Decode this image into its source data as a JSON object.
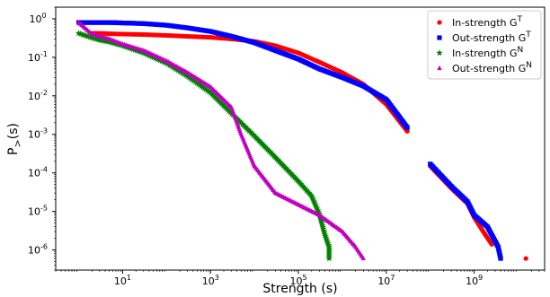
{
  "chart_data": {
    "type": "scatter",
    "xlabel": "Strength (s)",
    "ylabel": "P_>(s)",
    "x_scale": "log",
    "y_scale": "log",
    "xlim": [
      0.3,
      40000000000
    ],
    "ylim": [
      3e-07,
      2
    ],
    "x_ticks": [
      {
        "value": 10,
        "base": "10",
        "exp": "1"
      },
      {
        "value": 1000,
        "base": "10",
        "exp": "3"
      },
      {
        "value": 100000,
        "base": "10",
        "exp": "5"
      },
      {
        "value": 10000000,
        "base": "10",
        "exp": "7"
      },
      {
        "value": 1000000000,
        "base": "10",
        "exp": "9"
      }
    ],
    "y_ticks": [
      {
        "value": 1,
        "base": "10",
        "exp": "0"
      },
      {
        "value": 0.1,
        "base": "10",
        "exp": "-1"
      },
      {
        "value": 0.01,
        "base": "10",
        "exp": "-2"
      },
      {
        "value": 0.001,
        "base": "10",
        "exp": "-3"
      },
      {
        "value": 0.0001,
        "base": "10",
        "exp": "-4"
      },
      {
        "value": 1e-05,
        "base": "10",
        "exp": "-5"
      },
      {
        "value": 1e-06,
        "base": "10",
        "exp": "-6"
      }
    ],
    "legend_position": "top-right",
    "grid": false,
    "series": [
      {
        "name": "In-strength G",
        "name_sup": "T",
        "color": "#ff0000",
        "marker": "circle",
        "points": [
          [
            2,
            0.42
          ],
          [
            3,
            0.42
          ],
          [
            5,
            0.41
          ],
          [
            10,
            0.4
          ],
          [
            30,
            0.39
          ],
          [
            100,
            0.37
          ],
          [
            300,
            0.35
          ],
          [
            1000,
            0.33
          ],
          [
            3000,
            0.3
          ],
          [
            10000,
            0.26
          ],
          [
            30000,
            0.2
          ],
          [
            100000,
            0.13
          ],
          [
            300000,
            0.075
          ],
          [
            1000000,
            0.04
          ],
          [
            3000000,
            0.02
          ],
          [
            10000000,
            0.006
          ],
          [
            30000000,
            0.0012
          ],
          [
            100000000,
            0.00015
          ],
          [
            300000000,
            4e-05
          ],
          [
            700000000,
            1.6e-05
          ],
          [
            1000000000,
            7e-06
          ],
          [
            1600000000,
            3e-06
          ],
          [
            2500000000,
            1.4e-06
          ],
          [
            15000000000,
            6e-07
          ]
        ]
      },
      {
        "name": "Out-strength G",
        "name_sup": "T",
        "color": "#0000ff",
        "marker": "square",
        "points": [
          [
            1,
            0.8
          ],
          [
            2,
            0.8
          ],
          [
            5,
            0.8
          ],
          [
            10,
            0.78
          ],
          [
            30,
            0.75
          ],
          [
            100,
            0.68
          ],
          [
            300,
            0.58
          ],
          [
            1000,
            0.47
          ],
          [
            3000,
            0.35
          ],
          [
            10000,
            0.24
          ],
          [
            30000,
            0.15
          ],
          [
            100000,
            0.09
          ],
          [
            300000,
            0.05
          ],
          [
            1000000,
            0.03
          ],
          [
            3000000,
            0.018
          ],
          [
            10000000,
            0.008
          ],
          [
            30000000,
            0.0015
          ],
          [
            100000000,
            0.00017
          ],
          [
            300000000,
            4.5e-05
          ],
          [
            700000000,
            1.8e-05
          ],
          [
            1000000000,
            8e-06
          ],
          [
            2000000000,
            4e-06
          ],
          [
            3500000000,
            1.2e-06
          ],
          [
            4000000000,
            6e-07
          ]
        ]
      },
      {
        "name": "In-strength G",
        "name_sup": "N",
        "color": "#008000",
        "marker": "star",
        "points": [
          [
            1,
            0.42
          ],
          [
            2,
            0.32
          ],
          [
            3,
            0.28
          ],
          [
            5,
            0.25
          ],
          [
            10,
            0.2
          ],
          [
            30,
            0.13
          ],
          [
            100,
            0.07
          ],
          [
            300,
            0.032
          ],
          [
            1000,
            0.012
          ],
          [
            3000,
            0.0035
          ],
          [
            10000,
            0.0009
          ],
          [
            30000,
            0.00025
          ],
          [
            100000,
            6e-05
          ],
          [
            200000,
            2.5e-05
          ],
          [
            300000,
            8.5e-06
          ],
          [
            400000,
            2.5e-06
          ],
          [
            500000,
            1.2e-06
          ],
          [
            500000,
            6e-07
          ]
        ]
      },
      {
        "name": "Out-strength G",
        "name_sup": "N",
        "color": "#bf00bf",
        "marker": "triangle",
        "points": [
          [
            1,
            0.8
          ],
          [
            2,
            0.4
          ],
          [
            5,
            0.3
          ],
          [
            10,
            0.22
          ],
          [
            30,
            0.15
          ],
          [
            100,
            0.08
          ],
          [
            300,
            0.04
          ],
          [
            1000,
            0.017
          ],
          [
            3000,
            0.005
          ],
          [
            5000,
            0.001
          ],
          [
            10000,
            0.00015
          ],
          [
            30000,
            3e-05
          ],
          [
            100000,
            1.5e-05
          ],
          [
            300000,
            8e-06
          ],
          [
            1000000,
            3e-06
          ],
          [
            2000000,
            1.2e-06
          ],
          [
            3000000,
            6e-07
          ]
        ]
      }
    ]
  }
}
